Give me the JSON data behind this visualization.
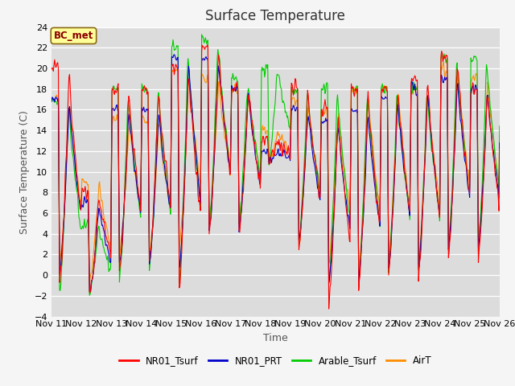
{
  "title": "Surface Temperature",
  "ylabel": "Surface Temperature (C)",
  "xlabel": "Time",
  "ylim": [
    -4,
    24
  ],
  "yticks": [
    -4,
    -2,
    0,
    2,
    4,
    6,
    8,
    10,
    12,
    14,
    16,
    18,
    20,
    22,
    24
  ],
  "xtick_labels": [
    "Nov 11",
    "Nov 12",
    "Nov 13",
    "Nov 14",
    "Nov 15",
    "Nov 16",
    "Nov 17",
    "Nov 18",
    "Nov 19",
    "Nov 20",
    "Nov 21",
    "Nov 22",
    "Nov 23",
    "Nov 24",
    "Nov 25",
    "Nov 26"
  ],
  "annotation_text": "BC_met",
  "annotation_color": "#8B0000",
  "annotation_bg": "#FFFF99",
  "annotation_border": "#8B6914",
  "colors": {
    "NR01_Tsurf": "#FF0000",
    "NR01_PRT": "#0000CC",
    "Arable_Tsurf": "#00CC00",
    "AirT": "#FF8C00"
  },
  "bg_color": "#DCDCDC",
  "fig_bg_color": "#F5F5F5",
  "linewidth": 0.8,
  "title_fontsize": 12,
  "label_fontsize": 9,
  "tick_fontsize": 8
}
